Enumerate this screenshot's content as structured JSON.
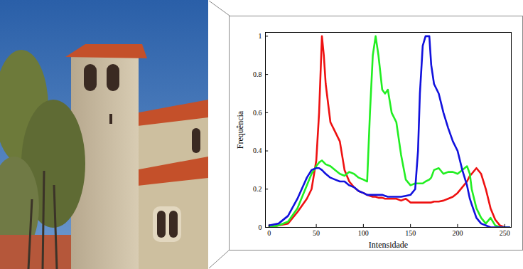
{
  "chart_data": {
    "type": "line",
    "xlabel": "Intensidade",
    "ylabel": "Frequência",
    "x": [
      0,
      10,
      20,
      30,
      40,
      45,
      50,
      53,
      56,
      58,
      60,
      65,
      70,
      75,
      80,
      85,
      90,
      95,
      100,
      104,
      107,
      110,
      113,
      116,
      120,
      123,
      126,
      130,
      135,
      140,
      145,
      150,
      155,
      158,
      160,
      163,
      166,
      170,
      172,
      175,
      180,
      185,
      190,
      195,
      200,
      205,
      210,
      213,
      215,
      220,
      225,
      230,
      235,
      240,
      245,
      250,
      255
    ],
    "series": [
      {
        "color": "#ee1111",
        "values": [
          0,
          0.01,
          0.02,
          0.08,
          0.15,
          0.2,
          0.35,
          0.6,
          1.0,
          0.9,
          0.75,
          0.55,
          0.5,
          0.45,
          0.3,
          0.24,
          0.21,
          0.19,
          0.18,
          0.17,
          0.165,
          0.16,
          0.16,
          0.155,
          0.155,
          0.15,
          0.15,
          0.15,
          0.15,
          0.14,
          0.15,
          0.13,
          0.13,
          0.13,
          0.13,
          0.13,
          0.13,
          0.13,
          0.13,
          0.135,
          0.135,
          0.14,
          0.15,
          0.16,
          0.18,
          0.21,
          0.24,
          0.27,
          0.28,
          0.31,
          0.28,
          0.2,
          0.1,
          0.04,
          0.01,
          0,
          0
        ]
      },
      {
        "color": "#22ee22",
        "values": [
          0,
          0.01,
          0.03,
          0.1,
          0.22,
          0.28,
          0.32,
          0.34,
          0.35,
          0.34,
          0.33,
          0.32,
          0.3,
          0.28,
          0.27,
          0.29,
          0.28,
          0.26,
          0.25,
          0.24,
          0.6,
          0.9,
          1.0,
          0.9,
          0.72,
          0.7,
          0.72,
          0.6,
          0.55,
          0.38,
          0.25,
          0.22,
          0.23,
          0.23,
          0.23,
          0.23,
          0.24,
          0.25,
          0.26,
          0.3,
          0.31,
          0.28,
          0.29,
          0.29,
          0.28,
          0.3,
          0.32,
          0.28,
          0.2,
          0.1,
          0.05,
          0.02,
          0.05,
          0.01,
          0,
          0,
          0
        ]
      },
      {
        "color": "#1111dd",
        "values": [
          0.01,
          0.02,
          0.06,
          0.15,
          0.26,
          0.3,
          0.31,
          0.31,
          0.3,
          0.29,
          0.28,
          0.26,
          0.25,
          0.24,
          0.24,
          0.22,
          0.21,
          0.19,
          0.18,
          0.17,
          0.17,
          0.17,
          0.17,
          0.17,
          0.17,
          0.165,
          0.16,
          0.16,
          0.16,
          0.16,
          0.165,
          0.17,
          0.2,
          0.4,
          0.7,
          0.95,
          1.0,
          1.0,
          0.85,
          0.75,
          0.7,
          0.6,
          0.52,
          0.45,
          0.4,
          0.3,
          0.22,
          0.15,
          0.12,
          0.05,
          0.02,
          0.01,
          0,
          0,
          0,
          0,
          0
        ]
      }
    ],
    "xlim": [
      -4,
      257
    ],
    "ylim": [
      0,
      1.02
    ],
    "xticks": [
      0,
      50,
      100,
      150,
      200,
      250
    ],
    "yticks": [
      0,
      0.2,
      0.4,
      0.6,
      0.8,
      1
    ],
    "grid": false
  }
}
